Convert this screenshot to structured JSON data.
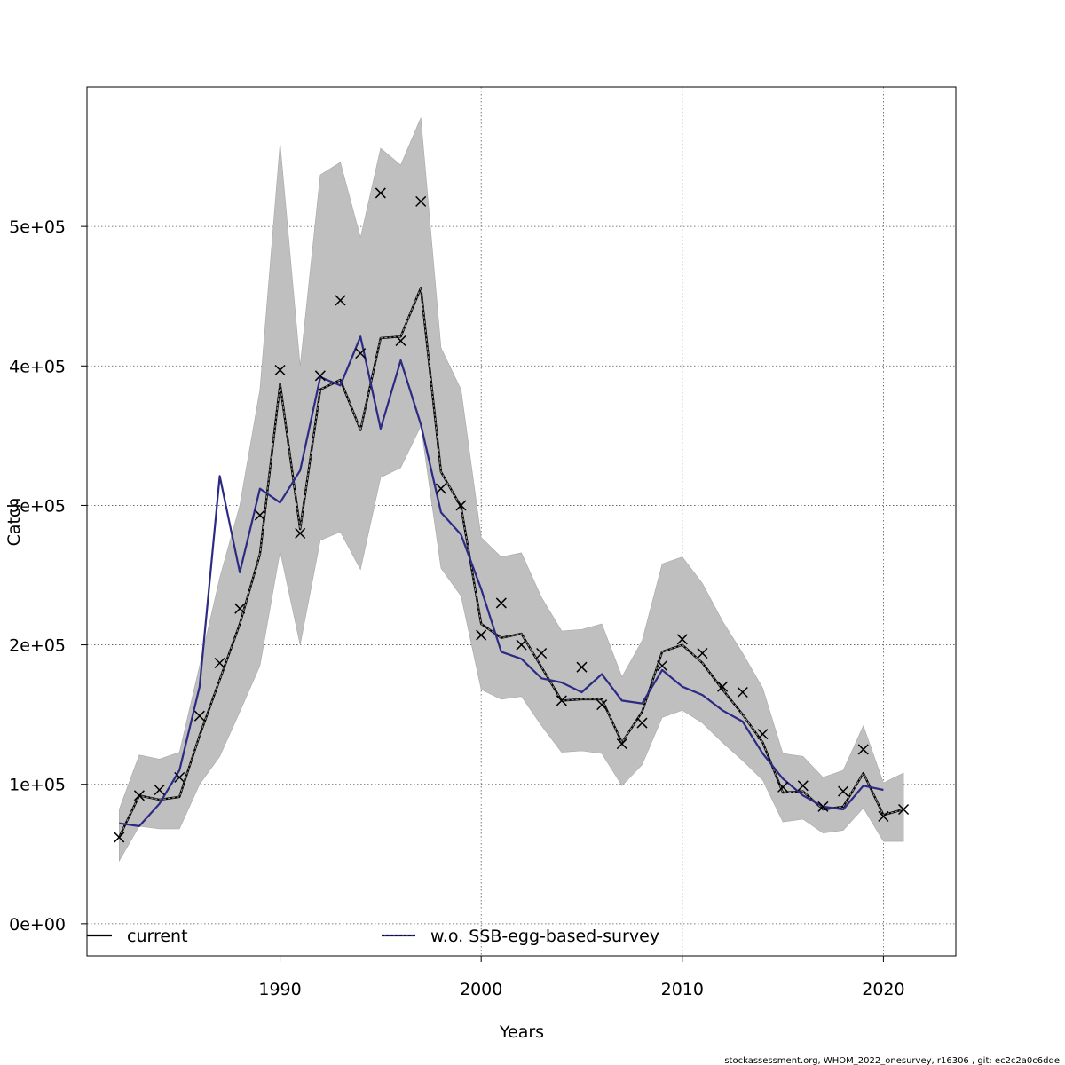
{
  "chart_data": {
    "type": "line",
    "xlabel": "Years",
    "ylabel": "Catch",
    "xlim": [
      1980.4,
      2023.6
    ],
    "ylim": [
      -23000,
      600000
    ],
    "grid": true,
    "legend_position": "bottom",
    "xticks": [
      1990,
      2000,
      2010,
      2020
    ],
    "xtick_labels": [
      "1990",
      "2000",
      "2010",
      "2020"
    ],
    "yticks": [
      0,
      100000,
      200000,
      300000,
      400000,
      500000
    ],
    "ytick_labels": [
      "0e+00",
      "1e+05",
      "2e+05",
      "3e+05",
      "4e+05",
      "5e+05"
    ],
    "series": [
      {
        "name": "current",
        "color": "#000000",
        "x": [
          1982,
          1983,
          1984,
          1985,
          1986,
          1987,
          1988,
          1989,
          1990,
          1991,
          1992,
          1993,
          1994,
          1995,
          1996,
          1997,
          1998,
          1999,
          2000,
          2001,
          2002,
          2003,
          2004,
          2005,
          2006,
          2007,
          2008,
          2009,
          2010,
          2011,
          2012,
          2013,
          2014,
          2015,
          2016,
          2017,
          2018,
          2019,
          2020,
          2021
        ],
        "values": [
          62000,
          92000,
          89000,
          91000,
          135000,
          175000,
          215000,
          265000,
          387000,
          283000,
          383000,
          390000,
          354000,
          420000,
          421000,
          456000,
          324000,
          299000,
          215000,
          205000,
          208000,
          184000,
          160000,
          161000,
          161000,
          130000,
          152000,
          195000,
          200000,
          187000,
          168000,
          150000,
          130000,
          94000,
          95000,
          82000,
          84000,
          108000,
          78000,
          82000
        ]
      },
      {
        "name": "w.o. SSB-egg-based-survey",
        "color": "#2b2a84",
        "x": [
          1982,
          1983,
          1984,
          1985,
          1986,
          1987,
          1988,
          1989,
          1990,
          1991,
          1992,
          1993,
          1994,
          1995,
          1996,
          1997,
          1998,
          1999,
          2000,
          2001,
          2002,
          2003,
          2004,
          2005,
          2006,
          2007,
          2008,
          2009,
          2010,
          2011,
          2012,
          2013,
          2014,
          2015,
          2016,
          2017,
          2018,
          2019,
          2020
        ],
        "values": [
          72000,
          70000,
          86000,
          110000,
          170000,
          321000,
          252000,
          312000,
          302000,
          325000,
          392000,
          386000,
          421000,
          355000,
          404000,
          358000,
          295000,
          279000,
          240000,
          195000,
          190000,
          176000,
          173000,
          166000,
          179000,
          160000,
          158000,
          182000,
          170000,
          164000,
          153000,
          145000,
          122000,
          104000,
          92000,
          84000,
          82000,
          99000,
          96000
        ]
      }
    ],
    "confidence_band": {
      "x": [
        1982,
        1983,
        1984,
        1985,
        1986,
        1987,
        1988,
        1989,
        1990,
        1991,
        1992,
        1993,
        1994,
        1995,
        1996,
        1997,
        1998,
        1999,
        2000,
        2001,
        2002,
        2003,
        2004,
        2005,
        2006,
        2007,
        2008,
        2009,
        2010,
        2011,
        2012,
        2013,
        2014,
        2015,
        2016,
        2017,
        2018,
        2019,
        2020,
        2021
      ],
      "upper": [
        82000,
        121000,
        118000,
        123000,
        185000,
        248000,
        300000,
        383000,
        560000,
        400000,
        537000,
        546000,
        492000,
        556000,
        544000,
        578000,
        413000,
        383000,
        277000,
        263000,
        266000,
        234000,
        210000,
        211000,
        215000,
        177000,
        203000,
        258000,
        263000,
        244000,
        217000,
        194000,
        169000,
        122000,
        120000,
        105000,
        110000,
        142000,
        101000,
        108000
      ],
      "lower": [
        45000,
        70000,
        68000,
        68000,
        100000,
        120000,
        152000,
        185000,
        267000,
        200000,
        275000,
        281000,
        254000,
        320000,
        327000,
        357000,
        255000,
        235000,
        168000,
        161000,
        163000,
        142000,
        123000,
        124000,
        122000,
        99000,
        114000,
        148000,
        153000,
        144000,
        130000,
        117000,
        103000,
        73000,
        75000,
        65000,
        67000,
        83000,
        59000,
        59000
      ]
    },
    "observed": {
      "marker": "x",
      "x": [
        1982,
        1983,
        1984,
        1985,
        1986,
        1987,
        1988,
        1989,
        1990,
        1991,
        1992,
        1993,
        1994,
        1995,
        1996,
        1997,
        1998,
        1999,
        2000,
        2001,
        2002,
        2003,
        2004,
        2005,
        2006,
        2007,
        2008,
        2009,
        2010,
        2011,
        2012,
        2013,
        2014,
        2015,
        2016,
        2017,
        2018,
        2019,
        2020,
        2021
      ],
      "values": [
        62000,
        92000,
        96000,
        105000,
        149000,
        187000,
        226000,
        293000,
        397000,
        280000,
        393000,
        447000,
        409000,
        524000,
        418000,
        518000,
        312000,
        300000,
        207000,
        230000,
        200000,
        194000,
        160000,
        184000,
        157000,
        129000,
        144000,
        185000,
        204000,
        194000,
        170000,
        166000,
        136000,
        98000,
        99000,
        84000,
        95000,
        125000,
        77000,
        82000
      ]
    }
  },
  "footer": "stockassessment.org, WHOM_2022_onesurvey, r16306 , git: ec2c2a0c6dde"
}
